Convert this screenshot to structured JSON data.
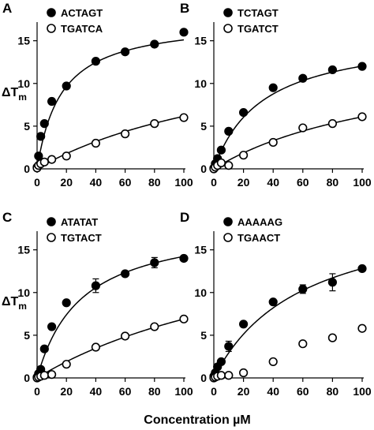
{
  "figure": {
    "xlabel": "Concentration µM",
    "ylabel_main": "ΔT",
    "ylabel_sub": "m"
  },
  "chart_data": [
    {
      "type": "scatter",
      "panel": "A",
      "xlim": [
        0,
        100
      ],
      "ylim": [
        0,
        17
      ],
      "xticks": [
        0,
        20,
        40,
        60,
        80,
        100
      ],
      "yticks": [
        0,
        5,
        10,
        15
      ],
      "ylabel": "ΔTm",
      "xlabel": "",
      "legend_position": "top-left",
      "series": [
        {
          "name": "ACTAGT",
          "marker": "filled",
          "x": [
            0,
            1,
            2.5,
            5,
            10,
            20,
            40,
            60,
            80,
            100
          ],
          "y": [
            0.2,
            1.5,
            3.8,
            5.3,
            7.9,
            9.7,
            12.6,
            13.7,
            14.6,
            16.0
          ],
          "err": [
            0,
            0,
            0.2,
            0.2,
            0.2,
            0.2,
            0.2,
            0.2,
            0.2,
            0.3
          ],
          "fit": {
            "ymax": 17.6,
            "kd": 16.5
          }
        },
        {
          "name": "TGATCA",
          "marker": "open",
          "x": [
            0,
            1,
            2.5,
            5,
            10,
            20,
            40,
            60,
            80,
            100
          ],
          "y": [
            0.1,
            0.4,
            0.6,
            0.8,
            1.1,
            1.5,
            3.0,
            4.1,
            5.3,
            6.0
          ],
          "err": [
            0,
            0,
            0,
            0,
            0.1,
            0.2,
            0.2,
            0.3,
            0.3,
            0.3
          ],
          "fit": {
            "ymax": 16.0,
            "kd": 160
          }
        }
      ]
    },
    {
      "type": "scatter",
      "panel": "B",
      "xlim": [
        0,
        100
      ],
      "ylim": [
        0,
        17
      ],
      "xticks": [
        0,
        20,
        40,
        60,
        80,
        100
      ],
      "yticks": [
        0,
        5,
        10,
        15
      ],
      "ylabel": "",
      "xlabel": "",
      "legend_position": "top-left",
      "series": [
        {
          "name": "TCTAGT",
          "marker": "filled",
          "x": [
            0,
            1,
            2.5,
            5,
            10,
            20,
            40,
            60,
            80,
            100
          ],
          "y": [
            0.1,
            0.6,
            1.2,
            2.2,
            4.4,
            6.6,
            9.5,
            10.6,
            11.6,
            12.0
          ],
          "err": [
            0,
            0,
            0,
            0.1,
            0.2,
            0.2,
            0.3,
            0.3,
            0.2,
            0.2
          ],
          "fit": {
            "ymax": 16.0,
            "kd": 33
          }
        },
        {
          "name": "TGATCT",
          "marker": "open",
          "x": [
            0,
            1,
            2.5,
            5,
            10,
            20,
            40,
            60,
            80,
            100
          ],
          "y": [
            0.0,
            0.2,
            0.4,
            0.7,
            0.4,
            1.6,
            3.1,
            4.8,
            5.3,
            6.1
          ],
          "err": [
            0,
            0,
            0,
            0,
            0,
            0.1,
            0.2,
            0.2,
            0.2,
            0.2
          ],
          "fit": {
            "ymax": 14.0,
            "kd": 130
          }
        }
      ]
    },
    {
      "type": "scatter",
      "panel": "C",
      "xlim": [
        0,
        100
      ],
      "ylim": [
        0,
        17
      ],
      "xticks": [
        0,
        20,
        40,
        60,
        80,
        100
      ],
      "yticks": [
        0,
        5,
        10,
        15
      ],
      "ylabel": "ΔTm",
      "xlabel": "",
      "legend_position": "top-left",
      "series": [
        {
          "name": "ATATAT",
          "marker": "filled",
          "x": [
            0,
            1,
            2.5,
            5,
            10,
            20,
            40,
            60,
            80,
            100
          ],
          "y": [
            0.1,
            0.5,
            1.0,
            3.4,
            6.0,
            8.8,
            10.8,
            12.2,
            13.5,
            14.0
          ],
          "err": [
            0,
            0,
            0,
            0.3,
            0.3,
            0.3,
            0.8,
            0.3,
            0.6,
            0.3
          ],
          "fit": {
            "ymax": 18.5,
            "kd": 30
          }
        },
        {
          "name": "TGTACT",
          "marker": "open",
          "x": [
            0,
            1,
            2.5,
            5,
            10,
            20,
            40,
            60,
            80,
            100
          ],
          "y": [
            0.0,
            0.1,
            0.2,
            0.3,
            0.4,
            1.6,
            3.6,
            4.9,
            6.0,
            6.9
          ],
          "err": [
            0,
            0,
            0,
            0,
            0,
            0.2,
            0.3,
            0.3,
            0.3,
            0.2
          ],
          "fit": {
            "ymax": 20.0,
            "kd": 190
          }
        }
      ]
    },
    {
      "type": "scatter",
      "panel": "D",
      "xlim": [
        0,
        100
      ],
      "ylim": [
        0,
        17
      ],
      "xticks": [
        0,
        20,
        40,
        60,
        80,
        100
      ],
      "yticks": [
        0,
        5,
        10,
        15
      ],
      "ylabel": "",
      "xlabel": "",
      "legend_position": "top-left",
      "series": [
        {
          "name": "AAAAAG",
          "marker": "filled",
          "x": [
            0,
            1,
            2.5,
            5,
            10,
            20,
            40,
            60,
            80,
            100
          ],
          "y": [
            0.2,
            0.6,
            1.3,
            1.9,
            3.7,
            6.3,
            8.9,
            10.4,
            11.2,
            12.8
          ],
          "err": [
            0,
            0,
            0,
            0.2,
            0.6,
            0.3,
            0.2,
            0.5,
            1.0,
            0.2
          ],
          "fit": {
            "ymax": 20.5,
            "kd": 60
          }
        },
        {
          "name": "TGAACT",
          "marker": "open",
          "x": [
            0,
            1,
            2.5,
            5,
            10,
            20,
            40,
            60,
            80,
            100
          ],
          "y": [
            0.0,
            0.1,
            0.2,
            0.3,
            0.3,
            0.6,
            1.9,
            4.0,
            4.7,
            5.8
          ],
          "err": [
            0,
            0,
            0,
            0,
            0,
            0.2,
            0.2,
            0.2,
            0.2,
            0.2
          ],
          "fit": null
        }
      ]
    }
  ]
}
